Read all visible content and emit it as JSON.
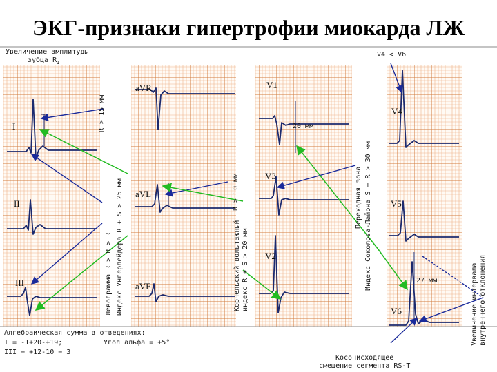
{
  "title": "ЭКГ-признаки гипертрофии миокарда ЛЖ",
  "leads": [
    "I",
    "II",
    "III",
    "aVR",
    "aVL",
    "aVF",
    "V1",
    "V3",
    "V2",
    "V4",
    "V5",
    "V6"
  ],
  "annotations": {
    "ampl_line1": "Увеличение амплитуды",
    "ampl_line2": "зубца R",
    "ampl_sub": "I",
    "ri15": "R  > 15 мм",
    "levogramma": "Левограмма  R  > R  > R",
    "ungerleider": "Индекс Унгерлейдера  R  + S   > 25 мм",
    "ravl10": "R    > 10 мм",
    "korn_line1": "Корнельский вольтажный",
    "korn_line2": "индекс R    + S   > 20 мм",
    "sokolov_line1": "Переходная зона",
    "sokolov_line2": "Индекс Соколова-Лайона S    + R    > 30 мм",
    "v4v6": "V4 < V6",
    "mm20": "20 мм",
    "mm27": "27 мм",
    "vat_line1": "Увеличение интервала",
    "vat_line2": "внутреннего отклонения",
    "st_line1": "Косонисходящее",
    "st_line2": "смещение сегмента RS-T",
    "sum_title": "Алгебраическая сумма в отведениях:",
    "sum_i": "I  = -1+20-+19;",
    "sum_iii": "III = +12-10 = 3",
    "alpha": "Угол альфа = +5°"
  },
  "colors": {
    "grid_minor": "#e8a878",
    "grid_major": "#d27a3c",
    "trace": "#1c2a6e",
    "arrow_blue": "#1a2a9a",
    "arrow_green": "#22bb22"
  }
}
